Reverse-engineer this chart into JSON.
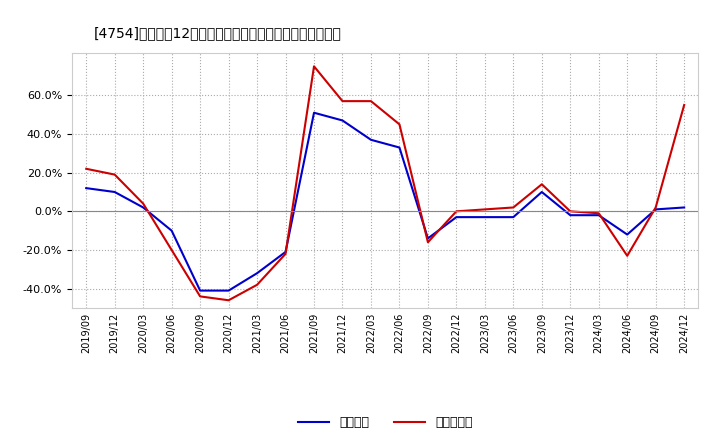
{
  "title": "[4754]　利益の12か月移動合計の対前年同期増減率の推移",
  "x_labels": [
    "2019/09",
    "2019/12",
    "2020/03",
    "2020/06",
    "2020/09",
    "2020/12",
    "2021/03",
    "2021/06",
    "2021/09",
    "2021/12",
    "2022/03",
    "2022/06",
    "2022/09",
    "2022/12",
    "2023/03",
    "2023/06",
    "2023/09",
    "2023/12",
    "2024/03",
    "2024/06",
    "2024/09",
    "2024/12"
  ],
  "blue_values": [
    0.12,
    0.1,
    0.02,
    -0.1,
    -0.41,
    -0.41,
    -0.32,
    -0.21,
    0.51,
    0.47,
    0.37,
    0.33,
    -0.14,
    -0.03,
    -0.03,
    -0.03,
    0.1,
    -0.02,
    -0.02,
    -0.12,
    0.01,
    0.02
  ],
  "red_values": [
    0.22,
    0.19,
    0.04,
    -0.2,
    -0.44,
    -0.46,
    -0.38,
    -0.22,
    0.75,
    0.57,
    0.57,
    0.45,
    -0.16,
    0.0,
    0.01,
    0.02,
    0.14,
    0.0,
    -0.01,
    -0.23,
    0.02,
    0.55
  ],
  "ylim": [
    -0.5,
    0.82
  ],
  "yticks": [
    -0.4,
    -0.2,
    0.0,
    0.2,
    0.4,
    0.6
  ],
  "blue_color": "#0000CC",
  "red_color": "#CC0000",
  "bg_color": "#FFFFFF",
  "plot_bg_color": "#FFFFFF",
  "grid_color": "#AAAAAA",
  "legend_blue": "経常利益",
  "legend_red": "当期純利益",
  "zero_line_color": "#888888"
}
